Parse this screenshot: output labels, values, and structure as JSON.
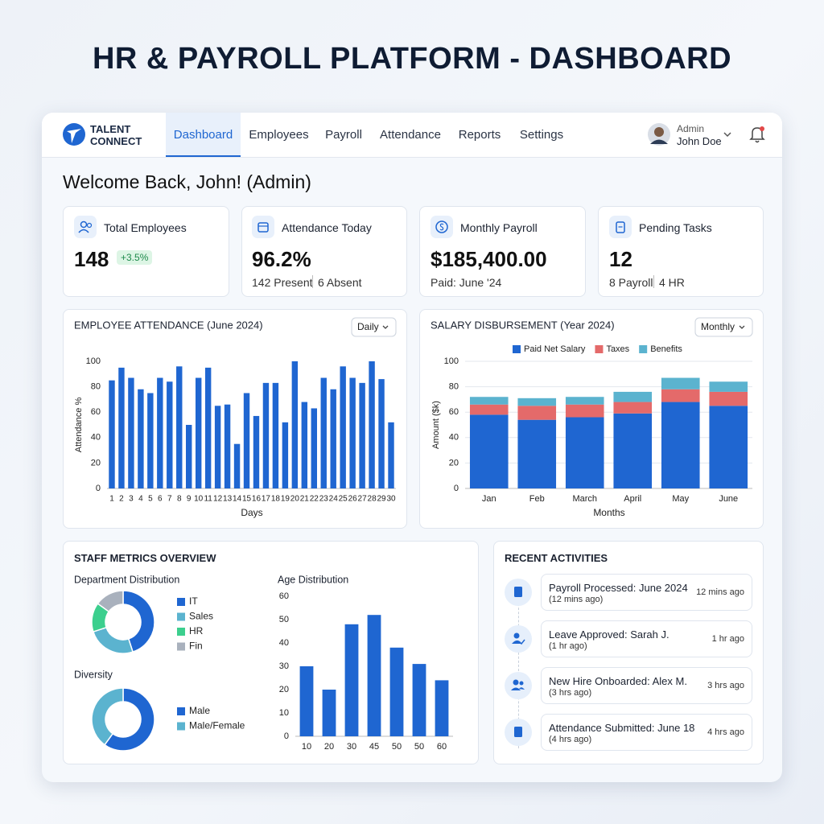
{
  "page_title": "HR & PAYROLL PLATFORM - DASHBOARD",
  "nav": {
    "logo": [
      "TALENT",
      "CONNECT"
    ],
    "tabs": [
      "Dashboard",
      "Employees",
      "Payroll",
      "Attendance",
      "Reports",
      "Settings"
    ],
    "user_role": "Admin",
    "user_name": "John Doe"
  },
  "welcome": "Welcome Back, John! (Admin)",
  "kpis": [
    {
      "label": "Total Employees",
      "value": "148",
      "badge": "+3.5%"
    },
    {
      "label": "Attendance Today",
      "value": "96.2%",
      "details": [
        "142 Present",
        "6 Absent"
      ]
    },
    {
      "label": "Monthly Payroll",
      "value": "$185,400.00",
      "details": [
        "Paid: June '24"
      ]
    },
    {
      "label": "Pending Tasks",
      "value": "12",
      "details": [
        "8 Payroll",
        "4 HR"
      ]
    }
  ],
  "chart_data": [
    {
      "type": "bar",
      "title": "EMPLOYEE ATTENDANCE (June 2024)",
      "dropdown": "Daily",
      "x_label": "Days",
      "y_label": "Attendance %",
      "categories": [
        "1",
        "2",
        "3",
        "4",
        "5",
        "6",
        "7",
        "8",
        "9",
        "10",
        "11",
        "12",
        "13",
        "14",
        "15",
        "16",
        "17",
        "18",
        "19",
        "20",
        "21",
        "22",
        "23",
        "24",
        "25",
        "26",
        "27",
        "28",
        "29",
        "30"
      ],
      "values": [
        85,
        95,
        87,
        78,
        75,
        87,
        84,
        96,
        50,
        87,
        95,
        65,
        66,
        35,
        75,
        57,
        83,
        83,
        52,
        100,
        68,
        63,
        87,
        78,
        96,
        87,
        83,
        100,
        86,
        52
      ],
      "color": "#1f66d1",
      "ylim": [
        0,
        100
      ],
      "yticks": [
        0,
        20,
        40,
        60,
        80,
        100
      ],
      "grid": false
    },
    {
      "type": "stacked_bar",
      "title": "SALARY DISBURSEMENT (Year 2024)",
      "dropdown": "Monthly",
      "x_label": "Months",
      "y_label": "Amount ($k)",
      "categories": [
        "Jan",
        "Feb",
        "March",
        "April",
        "May",
        "June"
      ],
      "series": [
        {
          "name": "Paid Net Salary",
          "color": "#1f66d1",
          "values": [
            58,
            54,
            56,
            59,
            68,
            65
          ]
        },
        {
          "name": "Taxes",
          "color": "#e46a6a",
          "values": [
            8,
            11,
            10,
            9,
            10,
            11
          ]
        },
        {
          "name": "Benefits",
          "color": "#5bb3cf",
          "values": [
            6,
            6,
            6,
            8,
            9,
            8
          ]
        }
      ],
      "ylim": [
        0,
        100
      ],
      "yticks": [
        0,
        20,
        40,
        60,
        80,
        100
      ],
      "grid": true
    },
    {
      "type": "pie",
      "title": "Department Distribution",
      "categories": [
        "IT",
        "Sales",
        "HR",
        "Fin"
      ],
      "values": [
        45,
        25,
        15,
        15
      ],
      "colors": [
        "#1f66d1",
        "#5bb3cf",
        "#3ccf8e",
        "#a9b1bd"
      ]
    },
    {
      "type": "pie",
      "title": "Diversity",
      "categories": [
        "Male",
        "Male/Female"
      ],
      "values": [
        60,
        40
      ],
      "colors": [
        "#1f66d1",
        "#5bb3cf"
      ]
    },
    {
      "type": "bar",
      "title": "Age Distribution",
      "categories": [
        "10",
        "20",
        "30",
        "45",
        "50",
        "50",
        "60"
      ],
      "values": [
        30,
        20,
        48,
        52,
        38,
        31,
        24
      ],
      "color": "#1f66d1",
      "ylim": [
        0,
        60
      ],
      "yticks": [
        0,
        10,
        20,
        30,
        40,
        50,
        60
      ],
      "grid": false
    }
  ],
  "staff_metrics_title": "STAFF METRICS OVERVIEW",
  "activities": {
    "title": "RECENT ACTIVITIES",
    "items": [
      {
        "title": "Payroll Processed: June 2024",
        "sub": "(12 mins ago)",
        "time": "12 mins ago"
      },
      {
        "title": "Leave Approved: Sarah J.",
        "sub": "(1 hr ago)",
        "time": "1 hr ago"
      },
      {
        "title": "New Hire Onboarded: Alex M.",
        "sub": "(3 hrs ago)",
        "time": "3 hrs ago"
      },
      {
        "title": "Attendance Submitted: June 18",
        "sub": "(4 hrs ago)",
        "time": "4 hrs ago"
      }
    ]
  }
}
